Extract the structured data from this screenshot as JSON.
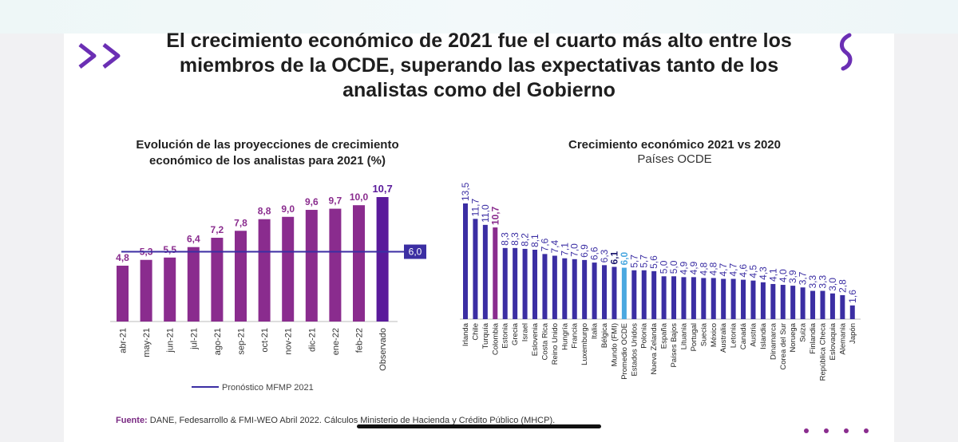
{
  "slide": {
    "title": "El crecimiento económico de 2021 fue el cuarto más alto entre los miembros de la OCDE, superando las expectativas tanto de los analistas como del Gobierno",
    "footer_label": "Fuente:",
    "footer_text": " DANE, Fedesarrollo & FMI-WEO Abril 2022. Cálculos Ministerio de Hacienda y Crédito Público (MHCP)."
  },
  "colors": {
    "purple": "#8a2c8e",
    "dark_purple": "#5a1a9b",
    "blue": "#3b2ea3",
    "highlight_colombia": "#8a2c8e",
    "highlight_ocde": "#4aa8e0"
  },
  "chart_data": [
    {
      "type": "bar",
      "title": "Evolución de las proyecciones de crecimiento económico de los analistas para 2021 (%)",
      "categories": [
        "abr-21",
        "may-21",
        "jun-21",
        "jul-21",
        "ago-21",
        "sep-21",
        "oct-21",
        "nov-21",
        "dic-21",
        "ene-22",
        "feb-22",
        "Observado"
      ],
      "values": [
        4.8,
        5.3,
        5.5,
        6.4,
        7.2,
        7.8,
        8.8,
        9.0,
        9.6,
        9.7,
        10.0,
        10.7
      ],
      "labels": [
        "4,8",
        "5,3",
        "5,5",
        "6,4",
        "7,2",
        "7,8",
        "8,8",
        "9,0",
        "9,6",
        "9,7",
        "10,0",
        "10,7"
      ],
      "reference_line": {
        "value": 6.0,
        "label": "6,0",
        "legend": "Pronóstico MFMP 2021"
      },
      "ylim": [
        0,
        11
      ]
    },
    {
      "type": "bar",
      "title": "Crecimiento económico 2021 vs 2020",
      "subtitle": "Países OCDE",
      "categories": [
        "Irlanda",
        "Chile",
        "Turquía",
        "Colombia",
        "Estonia",
        "Grecia",
        "Israel",
        "Eslovenia",
        "Costa Rica",
        "Reino Unido",
        "Hungría",
        "Francia",
        "Luxemburgo",
        "Italia",
        "Bélgica",
        "Mundo (FMI)",
        "Promedio OCDE",
        "Estados Unidos",
        "Polonia",
        "Nueva Zelanda",
        "España",
        "Países Bajos",
        "Lituania",
        "Portugal",
        "Suecia",
        "México",
        "Australia",
        "Letonia",
        "Canadá",
        "Austria",
        "Islandia",
        "Dinamarca",
        "Corea del Sur",
        "Noruega",
        "Suiza",
        "Finlandia",
        "República Checa",
        "Eslovaquia",
        "Alemania",
        "Japón"
      ],
      "values": [
        13.5,
        11.7,
        11.0,
        10.7,
        8.3,
        8.3,
        8.2,
        8.1,
        7.6,
        7.4,
        7.1,
        7.0,
        6.9,
        6.6,
        6.3,
        6.1,
        6.0,
        5.7,
        5.7,
        5.6,
        5.0,
        5.0,
        4.9,
        4.9,
        4.8,
        4.8,
        4.7,
        4.7,
        4.6,
        4.5,
        4.3,
        4.1,
        4.0,
        3.9,
        3.7,
        3.3,
        3.3,
        3.0,
        2.8,
        1.6
      ],
      "labels": [
        "13,5",
        "11,7",
        "11,0",
        "10,7",
        "8,3",
        "8,3",
        "8,2",
        "8,1",
        "7,6",
        "7,4",
        "7,1",
        "7,0",
        "6,9",
        "6,6",
        "6,3",
        "6,1",
        "6,0",
        "5,7",
        "5,7",
        "5,6",
        "5,0",
        "5,0",
        "4,9",
        "4,9",
        "4,8",
        "4,8",
        "4,7",
        "4,7",
        "4,6",
        "4,5",
        "4,3",
        "4,1",
        "4,0",
        "3,9",
        "3,7",
        "3,3",
        "3,3",
        "3,0",
        "2,8",
        "1,6"
      ],
      "highlight": {
        "Colombia": "purple",
        "Mundo (FMI)": "bold",
        "Promedio OCDE": "light-blue"
      },
      "ylim": [
        0,
        14
      ]
    }
  ]
}
